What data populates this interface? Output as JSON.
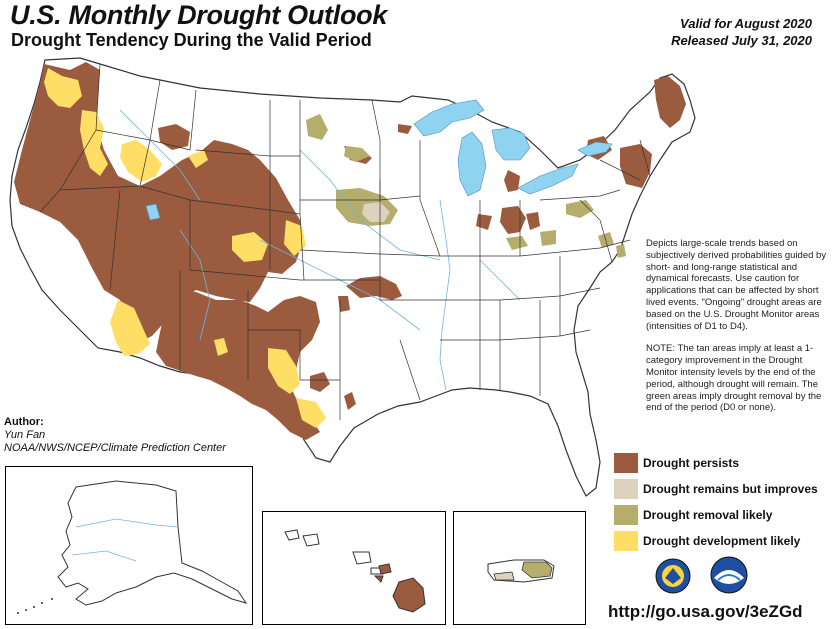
{
  "header": {
    "title": "U.S. Monthly Drought Outlook",
    "subtitle": "Drought Tendency During the Valid Period",
    "valid": "Valid for August 2020",
    "released": "Released July 31, 2020"
  },
  "notes": {
    "p1": "Depicts large-scale trends based on subjectively derived probabilities guided by short- and long-range statistical and dynamical forecasts. Use caution for applications that can be affected by short lived events. \"Ongoing\" drought areas are based on the U.S. Drought Monitor areas (intensities of D1 to D4).",
    "p2": "NOTE: The tan areas imply at least a 1-category improvement in the Drought Monitor intensity levels by the end of the period, although drought will remain. The green areas imply drought removal by the end of the period (D0 or none)."
  },
  "author": {
    "label": "Author:",
    "name": "Yun Fan",
    "org": "NOAA/NWS/NCEP/Climate Prediction Center"
  },
  "legend": [
    {
      "label": "Drought persists",
      "color": "#9b5b3f"
    },
    {
      "label": "Drought remains but improves",
      "color": "#ddd2bd"
    },
    {
      "label": "Drought removal likely",
      "color": "#b5ad6c"
    },
    {
      "label": "Drought development likely",
      "color": "#ffde66"
    }
  ],
  "colors": {
    "water": "#8fd3f0",
    "border": "#333333",
    "river": "#6fb4e0"
  },
  "insets": [
    "alaska-inset",
    "hawaii-inset",
    "puerto-rico-inset"
  ],
  "logos": [
    "nws-seal-icon",
    "noaa-logo-icon"
  ],
  "url": "http://go.usa.gov/3eZGd"
}
